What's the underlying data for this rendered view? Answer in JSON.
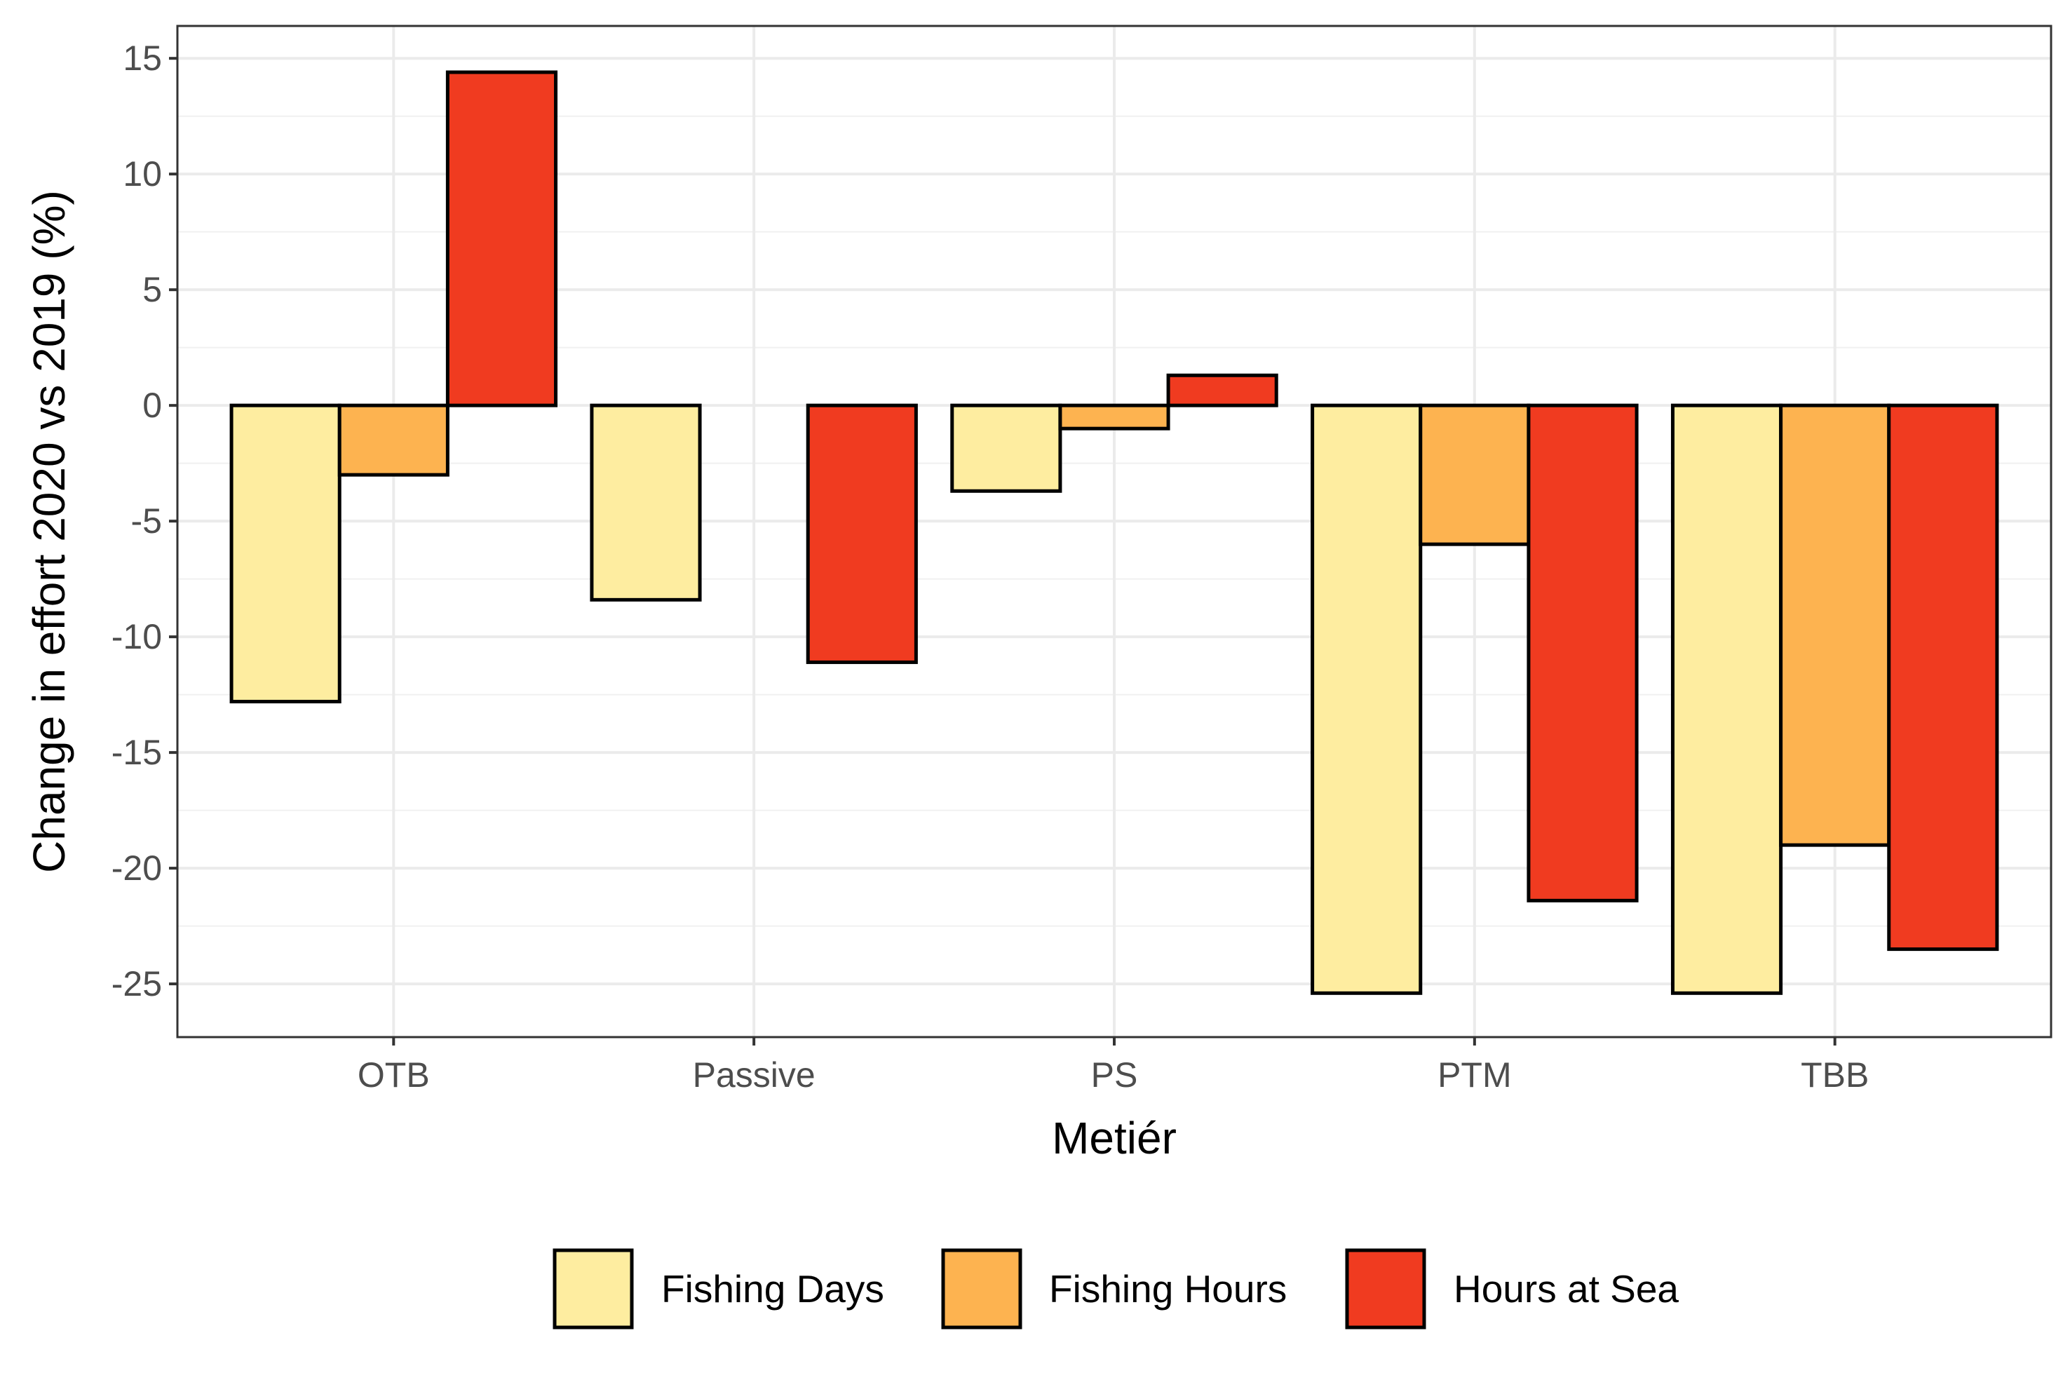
{
  "chart_data": {
    "type": "bar",
    "title": "",
    "xlabel": "Metiér",
    "ylabel": "Change in effort 2020 vs 2019 (%)",
    "categories": [
      "OTB",
      "Passive",
      "PS",
      "PTM",
      "TBB"
    ],
    "series": [
      {
        "name": "Fishing Days",
        "color": "#FEEDA0",
        "values": [
          -12.8,
          -8.4,
          -3.7,
          -25.4,
          -25.4
        ]
      },
      {
        "name": "Fishing Hours",
        "color": "#FDB350",
        "values": [
          -3.0,
          0,
          -1.0,
          -6.0,
          -19.0
        ]
      },
      {
        "name": "Hours at Sea",
        "color": "#F03B20",
        "values": [
          14.4,
          -11.1,
          1.3,
          -21.4,
          -23.5
        ]
      }
    ],
    "yticks": [
      15,
      10,
      5,
      0,
      -5,
      -10,
      -15,
      -20,
      -25
    ],
    "ylim": [
      -27.3,
      16.4
    ],
    "grid": true,
    "legend_position": "bottom"
  }
}
